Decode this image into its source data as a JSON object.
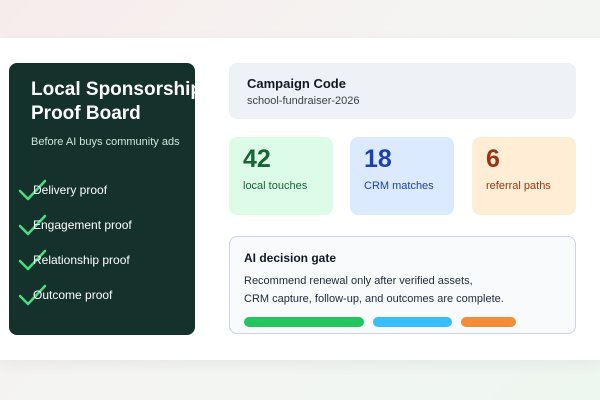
{
  "sidebar": {
    "title_lines": [
      "Local Sponsorship",
      "Proof Board"
    ],
    "subtitle": "Before AI buys community ads",
    "checklist": [
      "Delivery proof",
      "Engagement proof",
      "Relationship proof",
      "Outcome proof"
    ]
  },
  "campaign": {
    "label": "Campaign Code",
    "value": "school-fundraiser-2026"
  },
  "stats": [
    {
      "value": "42",
      "label": "local touches"
    },
    {
      "value": "18",
      "label": "CRM matches"
    },
    {
      "value": "6",
      "label": "referral paths"
    }
  ],
  "gate": {
    "title": "AI decision gate",
    "lines": [
      "Recommend renewal only after verified assets,",
      "CRM capture, follow-up, and outcomes are complete."
    ]
  }
}
